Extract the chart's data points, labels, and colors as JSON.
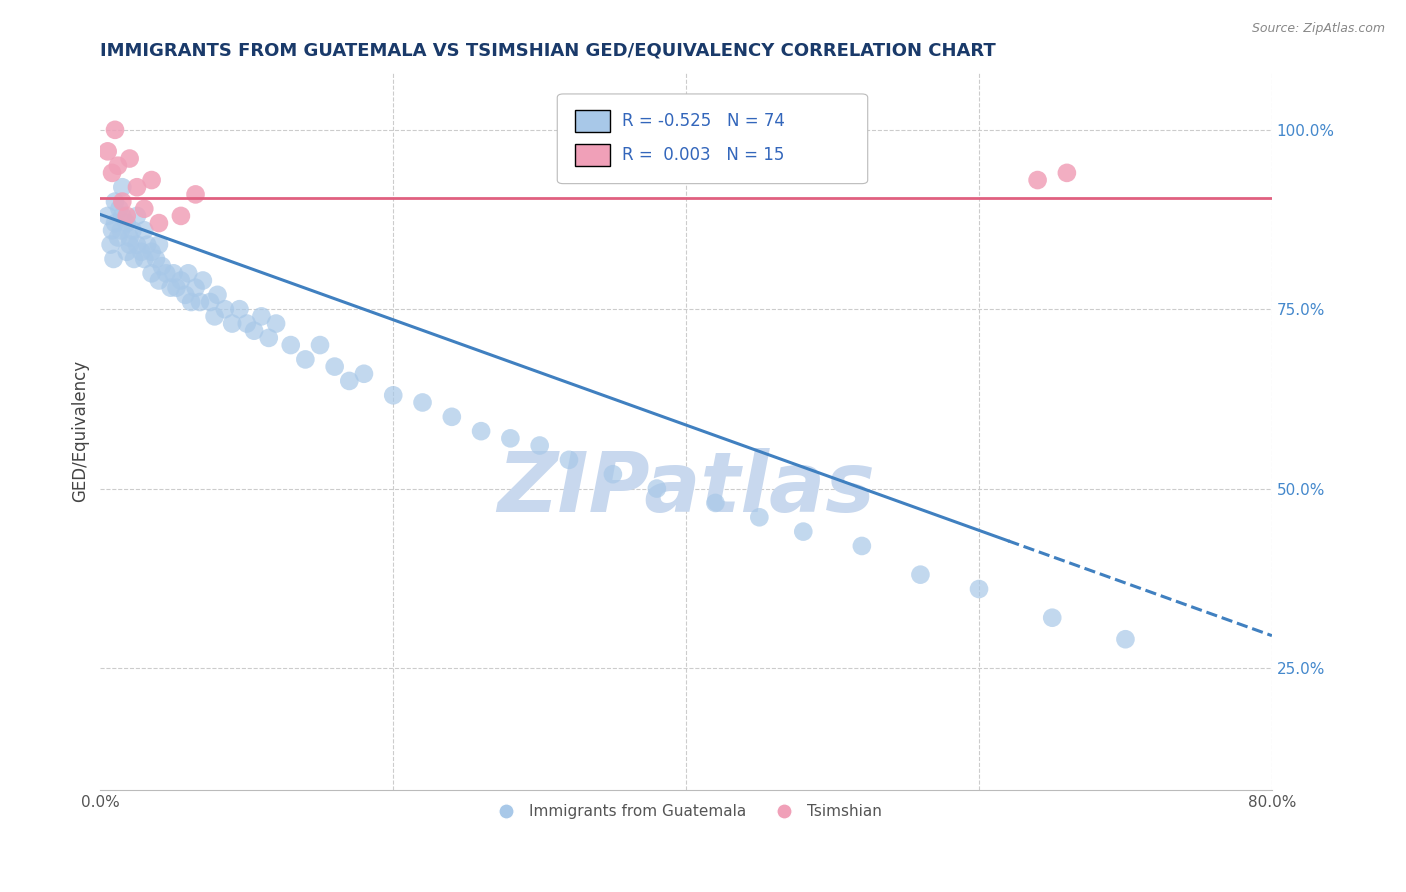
{
  "title": "IMMIGRANTS FROM GUATEMALA VS TSIMSHIAN GED/EQUIVALENCY CORRELATION CHART",
  "source": "Source: ZipAtlas.com",
  "ylabel": "GED/Equivalency",
  "xlim": [
    0.0,
    0.8
  ],
  "ylim": [
    0.08,
    1.08
  ],
  "ytick_right_labels": [
    "25.0%",
    "50.0%",
    "75.0%",
    "100.0%"
  ],
  "ytick_right_positions": [
    0.25,
    0.5,
    0.75,
    1.0
  ],
  "legend_labels": [
    "Immigrants from Guatemala",
    "Tsimshian"
  ],
  "R_blue": -0.525,
  "N_blue": 74,
  "R_pink": 0.003,
  "N_pink": 15,
  "blue_color": "#A8C8E8",
  "pink_color": "#F0A0B8",
  "blue_line_color": "#4080C0",
  "pink_line_color": "#E06080",
  "background_color": "#FFFFFF",
  "grid_color": "#CCCCCC",
  "title_color": "#1A3A6A",
  "watermark_color": "#C8D8EE",
  "blue_scatter_x": [
    0.005,
    0.007,
    0.008,
    0.009,
    0.01,
    0.01,
    0.012,
    0.013,
    0.014,
    0.015,
    0.015,
    0.018,
    0.018,
    0.02,
    0.02,
    0.022,
    0.023,
    0.025,
    0.025,
    0.028,
    0.03,
    0.03,
    0.032,
    0.035,
    0.035,
    0.038,
    0.04,
    0.04,
    0.042,
    0.045,
    0.048,
    0.05,
    0.052,
    0.055,
    0.058,
    0.06,
    0.062,
    0.065,
    0.068,
    0.07,
    0.075,
    0.078,
    0.08,
    0.085,
    0.09,
    0.095,
    0.1,
    0.105,
    0.11,
    0.115,
    0.12,
    0.13,
    0.14,
    0.15,
    0.16,
    0.17,
    0.18,
    0.2,
    0.22,
    0.24,
    0.26,
    0.28,
    0.3,
    0.32,
    0.35,
    0.38,
    0.42,
    0.45,
    0.48,
    0.52,
    0.56,
    0.6,
    0.65,
    0.7
  ],
  "blue_scatter_y": [
    0.88,
    0.84,
    0.86,
    0.82,
    0.9,
    0.87,
    0.85,
    0.89,
    0.86,
    0.92,
    0.88,
    0.83,
    0.87,
    0.85,
    0.84,
    0.86,
    0.82,
    0.84,
    0.88,
    0.83,
    0.86,
    0.82,
    0.84,
    0.83,
    0.8,
    0.82,
    0.84,
    0.79,
    0.81,
    0.8,
    0.78,
    0.8,
    0.78,
    0.79,
    0.77,
    0.8,
    0.76,
    0.78,
    0.76,
    0.79,
    0.76,
    0.74,
    0.77,
    0.75,
    0.73,
    0.75,
    0.73,
    0.72,
    0.74,
    0.71,
    0.73,
    0.7,
    0.68,
    0.7,
    0.67,
    0.65,
    0.66,
    0.63,
    0.62,
    0.6,
    0.58,
    0.57,
    0.56,
    0.54,
    0.52,
    0.5,
    0.48,
    0.46,
    0.44,
    0.42,
    0.38,
    0.36,
    0.32,
    0.29
  ],
  "pink_scatter_x": [
    0.005,
    0.008,
    0.01,
    0.012,
    0.015,
    0.018,
    0.02,
    0.025,
    0.03,
    0.035,
    0.04,
    0.055,
    0.065,
    0.64,
    0.66
  ],
  "pink_scatter_y": [
    0.97,
    0.94,
    1.0,
    0.95,
    0.9,
    0.88,
    0.96,
    0.92,
    0.89,
    0.93,
    0.87,
    0.88,
    0.91,
    0.93,
    0.94
  ],
  "pink_line_y": 0.905,
  "blue_line_x0": 0.0,
  "blue_line_y0": 0.882,
  "blue_line_x1": 0.8,
  "blue_line_y1": 0.295,
  "blue_line_solid_end": 0.62
}
